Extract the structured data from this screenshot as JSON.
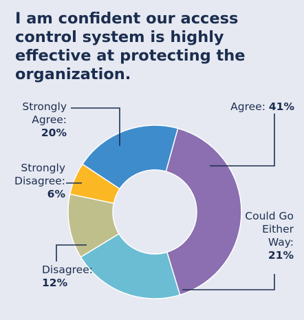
{
  "title": "I am confident our access control system is highly effective at protecting the organization.",
  "colors": {
    "background": "#e6e9f1",
    "text": "#1b2d4f"
  },
  "chart_data": {
    "type": "pie",
    "donut": true,
    "title": "I am confident our access control system is highly effective at protecting the organization.",
    "slices": [
      {
        "label": "Agree:",
        "value": 41,
        "display": "41%",
        "color": "#8b6fb0"
      },
      {
        "label": "Could Go Either Way:",
        "value": 21,
        "display": "21%",
        "color": "#6bbdd4"
      },
      {
        "label": "Disagree:",
        "value": 12,
        "display": "12%",
        "color": "#bfbf8c"
      },
      {
        "label": "Strongly Disagree:",
        "value": 6,
        "display": "6%",
        "color": "#fbb724"
      },
      {
        "label": "Strongly Agree:",
        "value": 20,
        "display": "20%",
        "color": "#3e8ccc"
      }
    ]
  }
}
